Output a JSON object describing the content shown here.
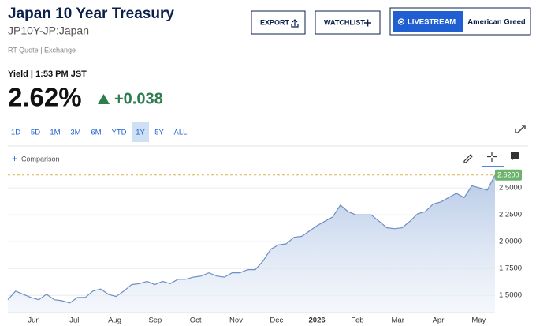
{
  "header": {
    "title": "Japan 10 Year Treasury",
    "symbol": "JP10Y-JP:Japan",
    "quote_source": "RT Quote | Exchange",
    "buttons": [
      "EXPORT",
      "WATCHLIST",
      "LIVESTREAM",
      "American Greed"
    ]
  },
  "quote": {
    "label": "Yield | 1:53 PM JST",
    "price": "2.62%",
    "change": "+0.038"
  },
  "range_selector": {
    "options": [
      "1D",
      "5D",
      "1M",
      "3M",
      "6M",
      "YTD",
      "1Y",
      "5Y",
      "ALL"
    ],
    "selected": "1Y"
  },
  "comparison": "Comparison",
  "chart_data": {
    "type": "area",
    "color": "#6e8fc4",
    "x_labels": [
      "Jun",
      "Jul",
      "Aug",
      "Sep",
      "Oct",
      "Nov",
      "Dec",
      "2026",
      "Feb",
      "Mar",
      "Apr",
      "May"
    ],
    "values": [
      1.46,
      1.54,
      1.51,
      1.48,
      1.46,
      1.51,
      1.46,
      1.45,
      1.43,
      1.48,
      1.48,
      1.54,
      1.56,
      1.51,
      1.49,
      1.54,
      1.6,
      1.61,
      1.63,
      1.6,
      1.63,
      1.61,
      1.65,
      1.65,
      1.67,
      1.68,
      1.71,
      1.68,
      1.67,
      1.71,
      1.71,
      1.74,
      1.74,
      1.82,
      1.93,
      1.97,
      1.98,
      2.04,
      2.05,
      2.1,
      2.15,
      2.19,
      2.23,
      2.34,
      2.28,
      2.25,
      2.25,
      2.25,
      2.19,
      2.13,
      2.12,
      2.13,
      2.19,
      2.26,
      2.28,
      2.35,
      2.37,
      2.41,
      2.45,
      2.41,
      2.52,
      2.5,
      2.48,
      2.62
    ],
    "ylim": [
      1.34,
      2.67
    ],
    "yticks": [
      {
        "value": 1.5,
        "label": "1.5000"
      },
      {
        "value": 1.75,
        "label": "1.7500"
      },
      {
        "value": 2.0,
        "label": "2.0000"
      },
      {
        "value": 2.25,
        "label": "2.2500"
      },
      {
        "value": 2.5,
        "label": "2.5000"
      }
    ],
    "grid": true,
    "last_marker": {
      "value": 2.62,
      "label": "2.6200"
    }
  }
}
